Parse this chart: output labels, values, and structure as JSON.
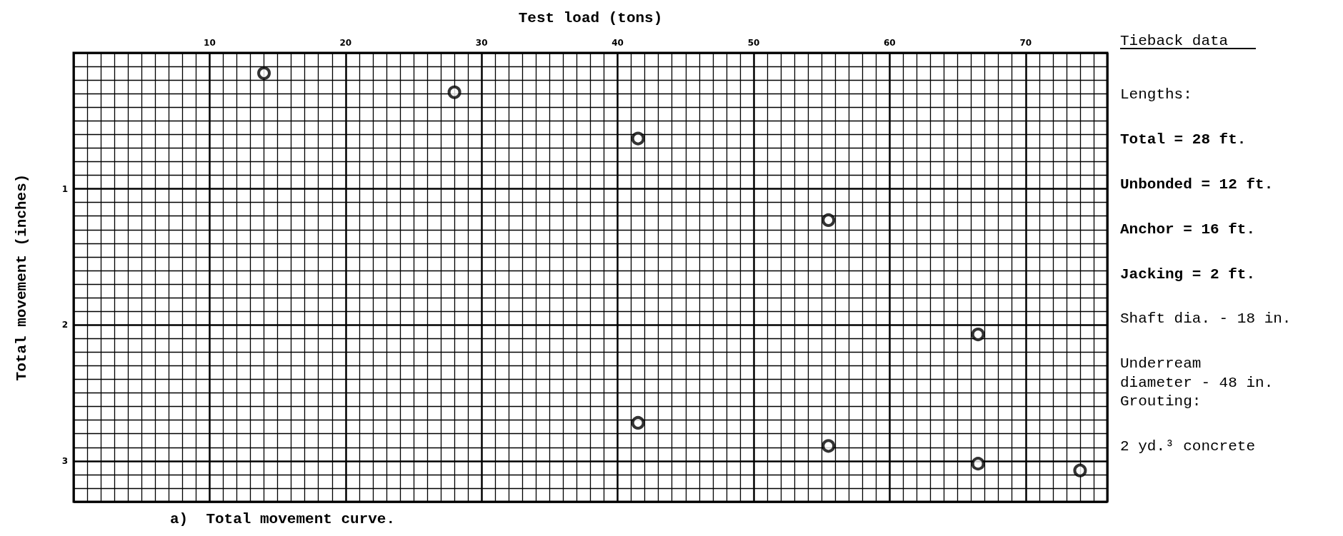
{
  "chart_data": {
    "type": "scatter",
    "xlabel": "Test load (tons)",
    "ylabel": "Total movement (inches)",
    "x": [
      14,
      28,
      41.5,
      55.5,
      66.5,
      41.5,
      55.5,
      66.5,
      74
    ],
    "values": [
      0.15,
      0.29,
      0.63,
      1.23,
      2.07,
      2.72,
      2.89,
      3.02,
      3.07
    ],
    "color": "#000000",
    "marker": "circle",
    "xlim": [
      0,
      76
    ],
    "xticks": [
      10,
      20,
      30,
      40,
      50,
      60,
      70
    ],
    "ylim": [
      3.3,
      0
    ],
    "yticks": [
      1,
      2,
      3
    ],
    "grid": true,
    "annotations": [
      "Tieback data",
      "Lengths:",
      "Total = 28 ft.",
      "Unbonded = 12 ft.",
      "Anchor = 16 ft.",
      "Jacking = 2 ft.",
      "Shaft dia. - 18 in.",
      "Underream\ndiameter - 48 in.",
      "Grouting:",
      "2 yd.³ concrete",
      "a)  Total movement curve."
    ]
  }
}
